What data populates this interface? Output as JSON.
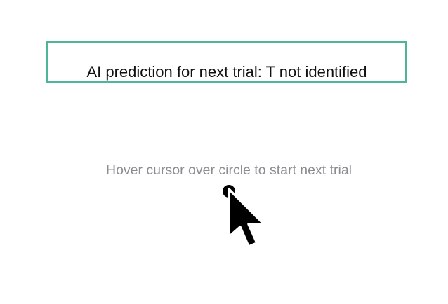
{
  "prediction": {
    "text": "AI prediction for next trial: T not identified"
  },
  "instruction": {
    "text": "Hover cursor over circle to start next trial"
  },
  "colors": {
    "box_border": "#4fb59a",
    "instruction_text": "#8a8d90",
    "circle": "#000000"
  },
  "icons": {
    "pointer": "mouse-pointer-icon"
  }
}
